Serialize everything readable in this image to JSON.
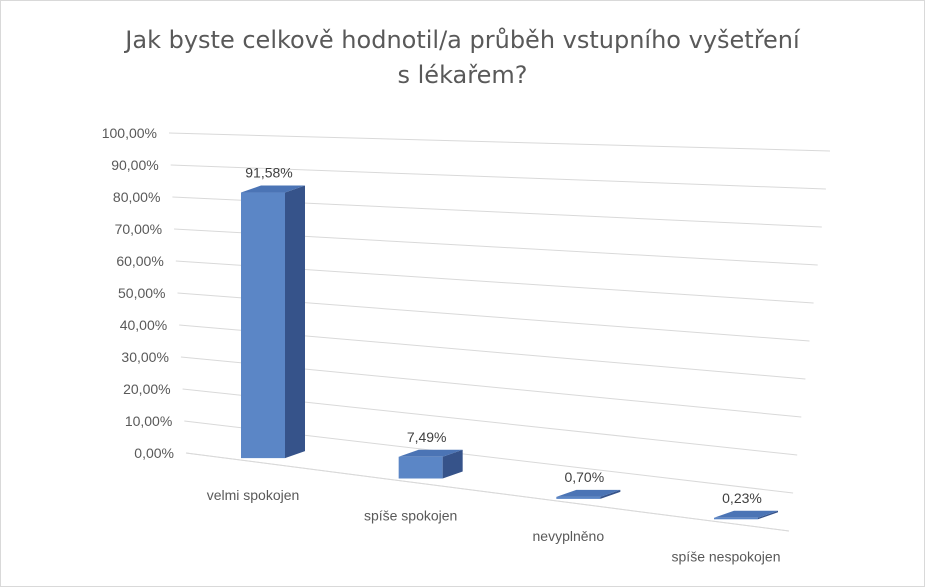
{
  "chart_data": {
    "type": "bar",
    "title": "Jak byste celkově hodnotil/a průběh vstupního vyšetření s lékařem?",
    "title_lines": [
      "Jak byste celkově hodnotil/a průběh vstupního vyšetření",
      "s lékařem?"
    ],
    "categories": [
      "velmi spokojen",
      "spíše spokojen",
      "nevyplněno",
      "spíše nespokojen"
    ],
    "values": [
      91.58,
      7.49,
      0.7,
      0.23
    ],
    "data_labels": [
      "91,58%",
      "7,49%",
      "0,70%",
      "0,23%"
    ],
    "y_ticks": [
      "0,00%",
      "10,00%",
      "20,00%",
      "30,00%",
      "40,00%",
      "50,00%",
      "60,00%",
      "70,00%",
      "80,00%",
      "90,00%",
      "100,00%"
    ],
    "ylim": [
      0,
      100
    ],
    "xlabel": "",
    "ylabel": "",
    "grid": true,
    "legend": "none",
    "style": "3d-column",
    "colors": {
      "bar_front": "#5b86c6",
      "bar_side": "#36538a",
      "bar_top": "#4b74b5",
      "grid": "#d9d9d9",
      "text": "#595959",
      "label": "#404040"
    }
  }
}
